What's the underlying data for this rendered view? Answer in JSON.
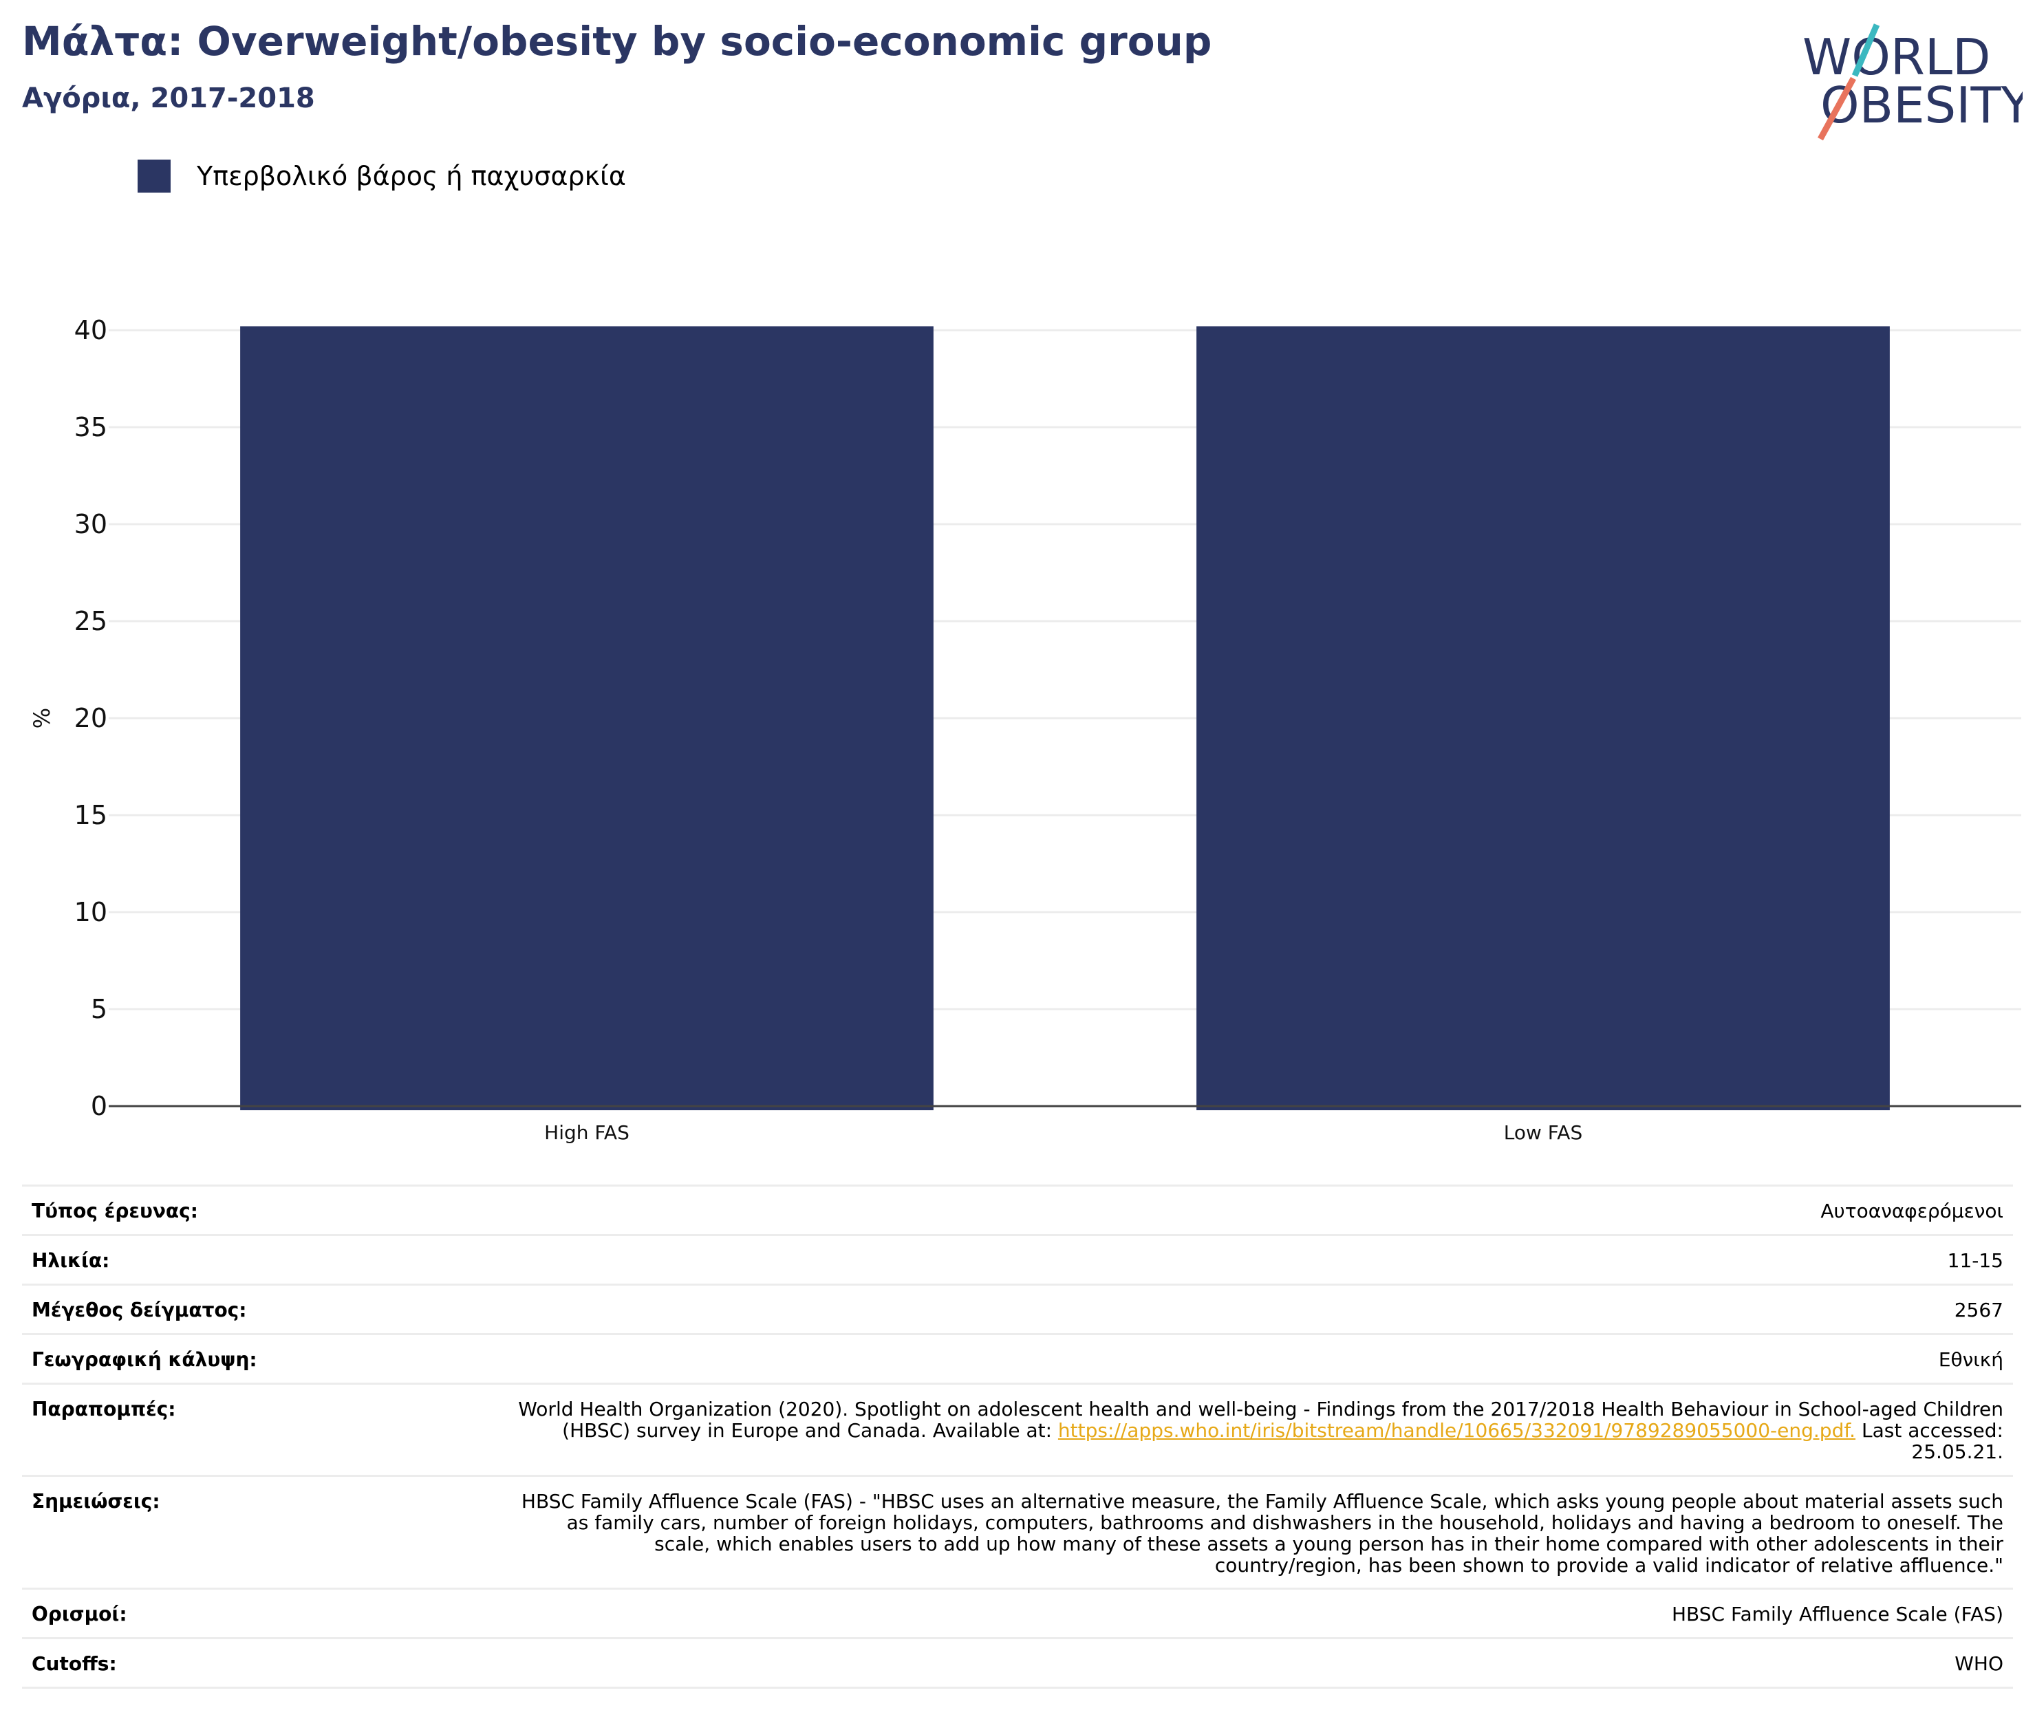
{
  "header": {
    "title": "Μάλτα: Overweight/obesity by socio-economic group",
    "subtitle": "Αγόρια, 2017-2018"
  },
  "logo": {
    "line1": "WORLD",
    "line2": "OBESITY",
    "icon": "world-obesity-logo"
  },
  "legend": {
    "label": "Υπερβολικό βάρος ή παχυσαρκία",
    "color": "#2b3663"
  },
  "chart_data": {
    "type": "bar",
    "title": "",
    "xlabel": "",
    "ylabel": "%",
    "categories": [
      "High FAS",
      "Low FAS"
    ],
    "series": [
      {
        "name": "Υπερβολικό βάρος ή παχυσαρκία",
        "values": [
          40.2,
          40.2
        ],
        "color": "#2b3663"
      }
    ],
    "ylim": [
      0,
      40
    ],
    "yticks": [
      0,
      5,
      10,
      15,
      20,
      25,
      30,
      35,
      40
    ],
    "grid": true
  },
  "meta": {
    "survey_type": {
      "key": "Τύπος έρευνας:",
      "value": "Αυτοαναφερόμενοι"
    },
    "age": {
      "key": "Ηλικία:",
      "value": "11-15"
    },
    "sample_size": {
      "key": "Μέγεθος δείγματος:",
      "value": "2567"
    },
    "coverage": {
      "key": "Γεωγραφική κάλυψη:",
      "value": "Εθνική"
    },
    "references": {
      "key": "Παραπομπές:",
      "text_before": "World Health Organization (2020). Spotlight on adolescent health and well-being - Findings from the 2017/2018 Health Behaviour in School-aged Children (HBSC) survey in Europe and Canada. Available at: ",
      "link": "https://apps.who.int/iris/bitstream/handle/10665/332091/9789289055000-eng.pdf.",
      "text_after": " Last accessed: 25.05.21."
    },
    "notes": {
      "key": "Σημειώσεις:",
      "value": "HBSC Family Affluence Scale (FAS) - \"HBSC uses an alternative measure, the Family Affluence Scale, which asks young people about material assets such as family cars, number of foreign holidays, computers, bathrooms and dishwashers in the household, holidays and having a bedroom to oneself. The scale, which enables users to add up how many of these assets a young person has in their home compared with other adolescents in their country/region, has been shown to provide a valid indicator of relative affluence.\""
    },
    "definitions": {
      "key": "Ορισμοί:",
      "value": "HBSC Family Affluence Scale (FAS)"
    },
    "cutoffs": {
      "key": "Cutoffs:",
      "value": "WHO"
    }
  }
}
